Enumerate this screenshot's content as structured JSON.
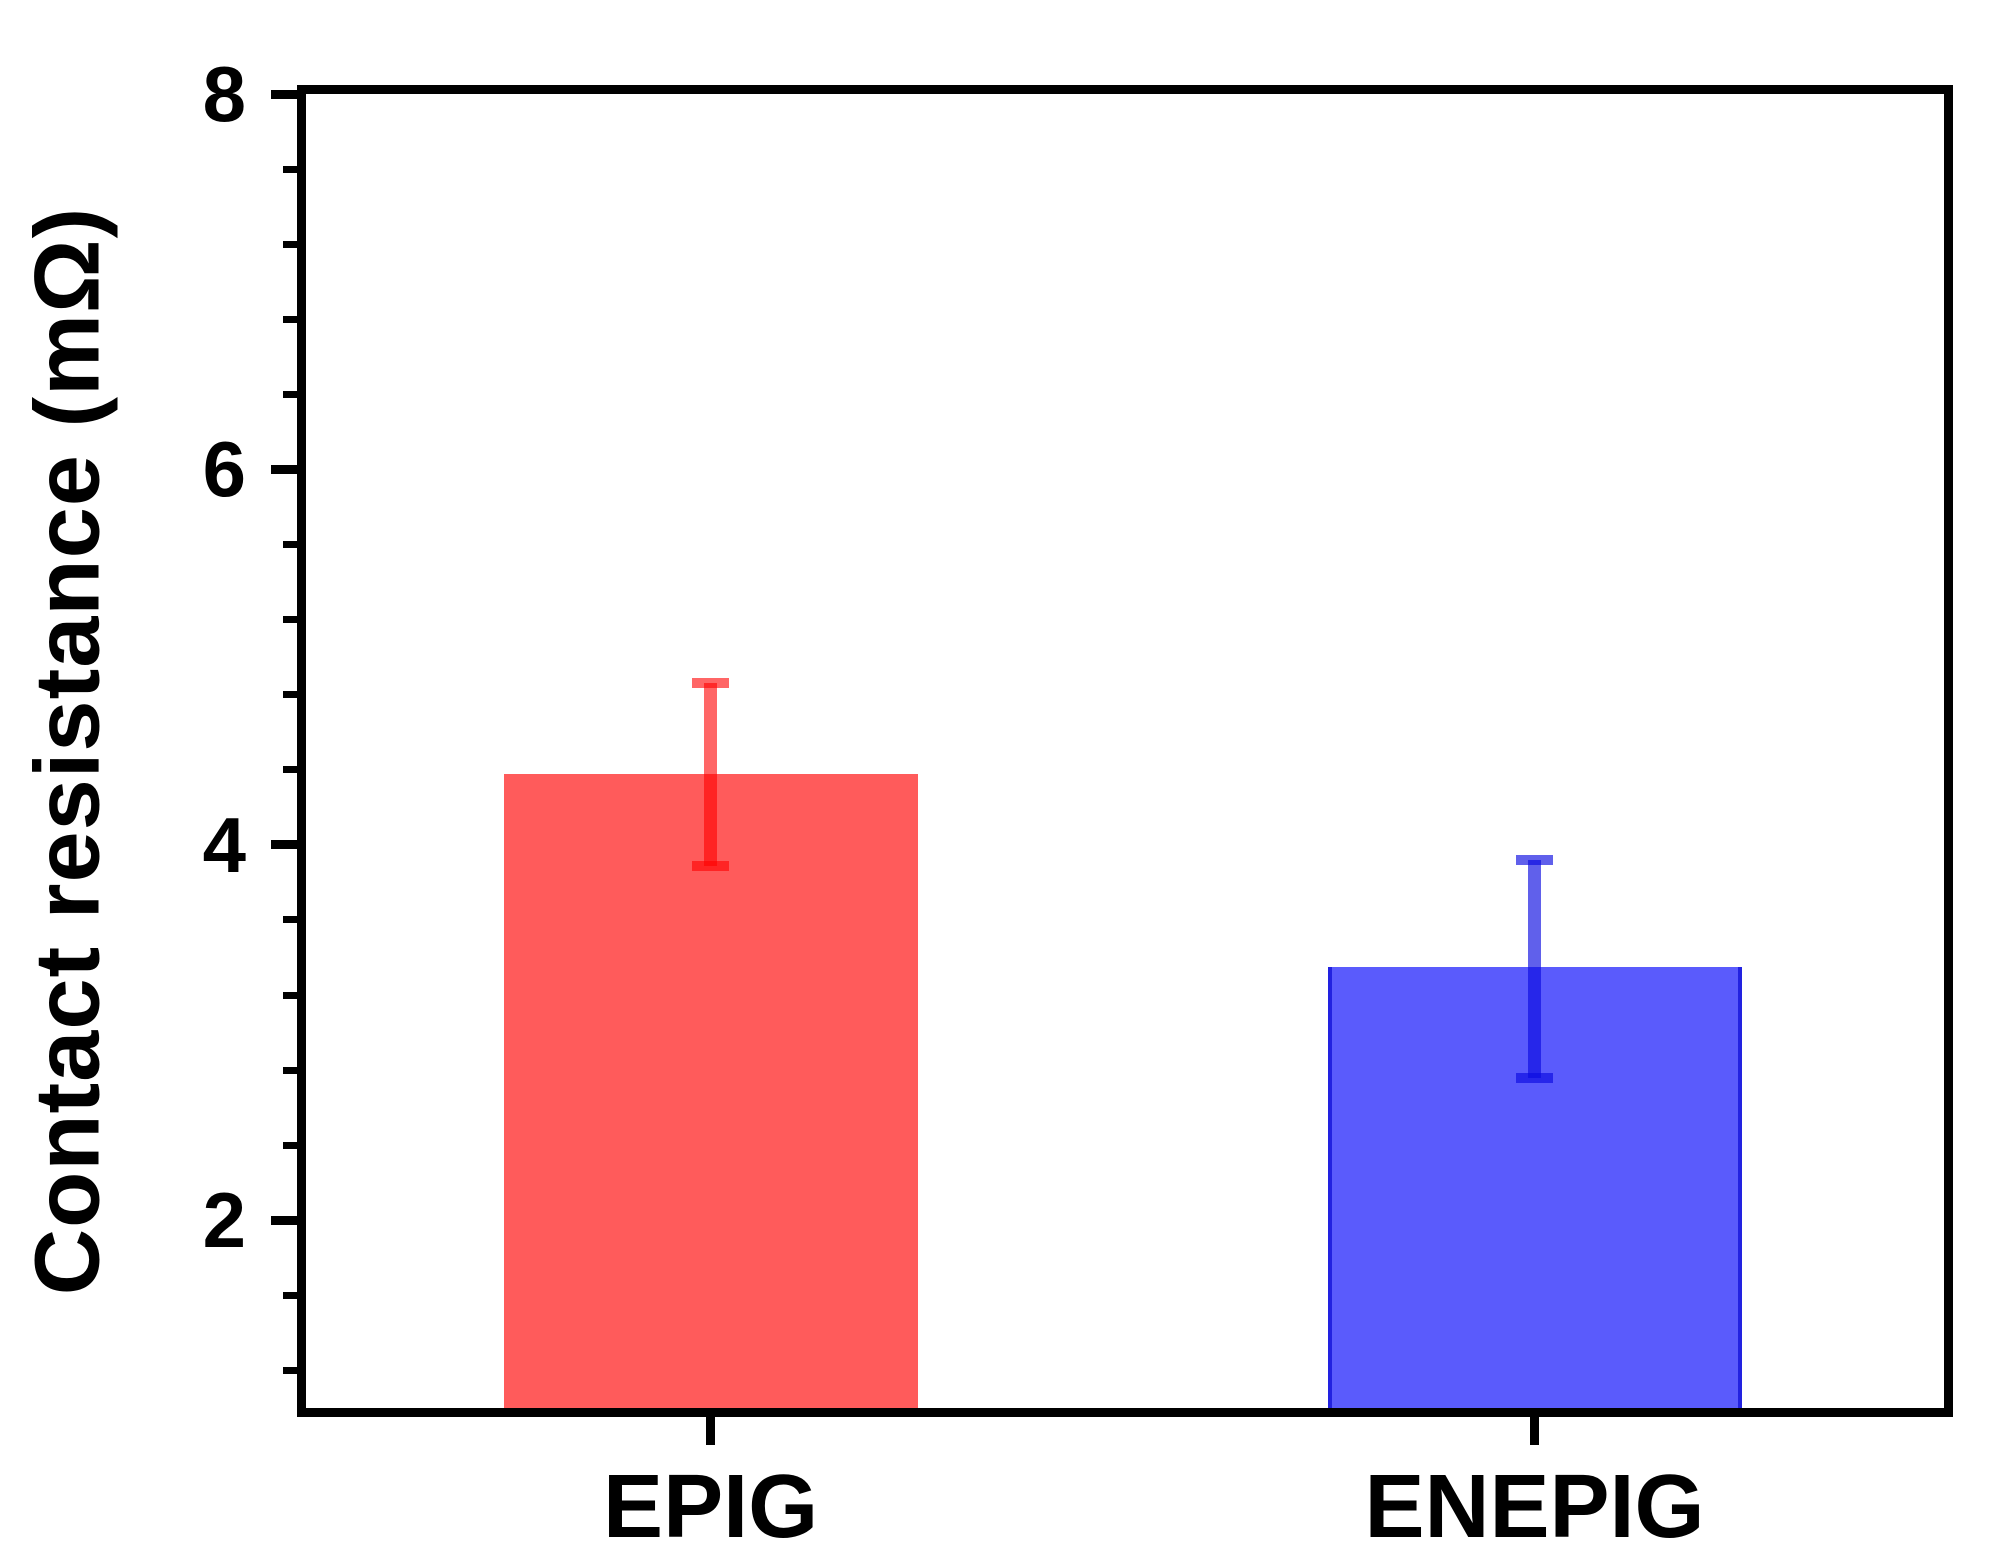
{
  "figure": {
    "background_color": "#ffffff",
    "axis_color": "#000000",
    "text_color": "#000000"
  },
  "chart_data": {
    "type": "bar",
    "categories": [
      "EPIG",
      "ENEPIG"
    ],
    "values": [
      4.38,
      3.35
    ],
    "error_plus": [
      0.48,
      0.57
    ],
    "error_minus": [
      0.49,
      0.59
    ],
    "title": "",
    "xlabel": "",
    "ylabel": "Contact resistance (mΩ)",
    "ylim": [
      1,
      8
    ],
    "yticks": [
      2,
      4,
      6,
      8
    ],
    "ytick_labels": [
      "2",
      "4",
      "6",
      "8"
    ],
    "minor_tick_step": 0.4,
    "grid": false,
    "legend": false,
    "bar_fill_colors": [
      "#ff5b5b",
      "#5a5bfc"
    ],
    "bar_edge_colors": [
      "#ff5b5b",
      "#2222e0"
    ],
    "error_bar_colors": [
      "rgba(255,0,0,0.60)",
      "rgba(10,10,225,0.65)"
    ]
  }
}
